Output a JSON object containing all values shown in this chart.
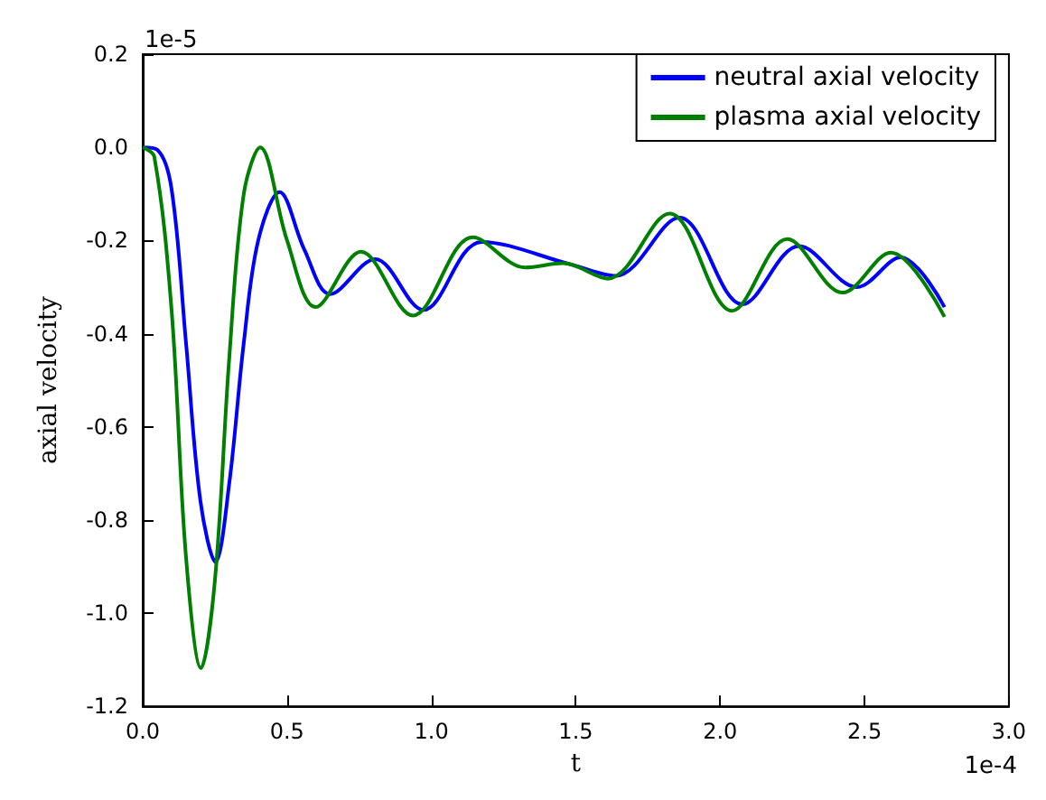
{
  "chart_data": {
    "type": "line",
    "xlabel": "t",
    "ylabel": "axial velocity",
    "annotations": [
      "1e-5",
      "1e-4"
    ],
    "xlim": [
      0,
      3.0
    ],
    "xticks": [
      {
        "value": 0,
        "label": "0.0"
      },
      0.5,
      {
        "value": 1,
        "label": "1.0"
      },
      1.5,
      {
        "value": 2,
        "label": "2.0"
      },
      2.5,
      {
        "value": 3,
        "label": "3.0"
      }
    ],
    "ylim": [
      -1.2,
      0.2
    ],
    "yticks": [
      {
        "value": -1.2,
        "label": "-1.2"
      },
      {
        "value": -1,
        "label": "-1.0"
      },
      {
        "value": -0.8,
        "label": "-0.8"
      },
      {
        "value": -0.6,
        "label": "-0.6"
      },
      {
        "value": -0.4,
        "label": "-0.4"
      },
      {
        "value": -0.2,
        "label": "-0.2"
      },
      {
        "value": 0,
        "label": "0.0"
      },
      {
        "value": 0.2,
        "label": "0.2"
      }
    ],
    "grid": false,
    "legend": "top right",
    "marker": "none",
    "line_style": "solid",
    "series": [
      {
        "name": "neutral axial velocity",
        "color": "#0000ff",
        "x": [
          0,
          0.05,
          0.1,
          0.15,
          0.2,
          0.252,
          0.3,
          0.35,
          0.4,
          0.474,
          0.56,
          0.649,
          0.805,
          0.972,
          1.174,
          1.486,
          1.638,
          1.859,
          2.077,
          2.273,
          2.474,
          2.625,
          2.777
        ],
        "values": [
          0,
          -0.005,
          -0.09,
          -0.42,
          -0.76,
          -0.89,
          -0.72,
          -0.42,
          -0.2,
          -0.096,
          -0.22,
          -0.315,
          -0.24,
          -0.349,
          -0.203,
          -0.252,
          -0.276,
          -0.151,
          -0.337,
          -0.212,
          -0.3,
          -0.236,
          -0.343
        ]
      },
      {
        "name": "plasma axial velocity",
        "color": "#008000",
        "x": [
          0,
          0.04,
          0.1,
          0.15,
          0.202,
          0.25,
          0.3,
          0.35,
          0.407,
          0.5,
          0.599,
          0.756,
          0.936,
          1.143,
          1.325,
          1.456,
          1.611,
          1.825,
          2.041,
          2.232,
          2.424,
          2.591,
          2.777
        ],
        "values": [
          0,
          -0.02,
          -0.35,
          -0.88,
          -1.118,
          -0.93,
          -0.45,
          -0.1,
          0,
          -0.2,
          -0.343,
          -0.224,
          -0.361,
          -0.193,
          -0.258,
          -0.249,
          -0.282,
          -0.142,
          -0.351,
          -0.197,
          -0.312,
          -0.226,
          -0.364
        ]
      }
    ]
  }
}
